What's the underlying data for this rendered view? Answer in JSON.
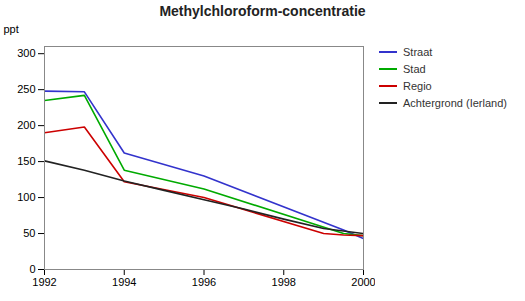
{
  "chart_data": {
    "type": "line",
    "title": "Methylchloroform-concentratie",
    "ylabel": "ppt",
    "xlim": [
      1992,
      2000
    ],
    "ylim": [
      0,
      310
    ],
    "xticks": [
      1992,
      1994,
      1996,
      1998,
      2000
    ],
    "yticks": [
      0,
      50,
      100,
      150,
      200,
      250,
      300
    ],
    "grid": false,
    "legend": "upper right",
    "series": [
      {
        "name": "Straat",
        "color": "#3333cc",
        "x": [
          1992,
          1993,
          1994,
          1996,
          1999.5,
          2000
        ],
        "values": [
          248,
          247,
          162,
          130,
          55,
          43
        ]
      },
      {
        "name": "Stad",
        "color": "#00aa00",
        "x": [
          1992,
          1993,
          1994,
          1996,
          1999.5,
          2000
        ],
        "values": [
          235,
          242,
          138,
          112,
          50,
          47
        ]
      },
      {
        "name": "Regio",
        "color": "#cc0000",
        "x": [
          1992,
          1993,
          1994,
          1996,
          1999,
          1999.5,
          2000
        ],
        "values": [
          190,
          198,
          122,
          100,
          50,
          48,
          47
        ]
      },
      {
        "name": "Achtergrond (Ierland)",
        "color": "#222222",
        "x": [
          1992,
          1993,
          1994,
          1995,
          1996,
          1997,
          1998,
          1999,
          2000
        ],
        "values": [
          151,
          138,
          123,
          110,
          97,
          84,
          70,
          57,
          50
        ]
      }
    ]
  }
}
